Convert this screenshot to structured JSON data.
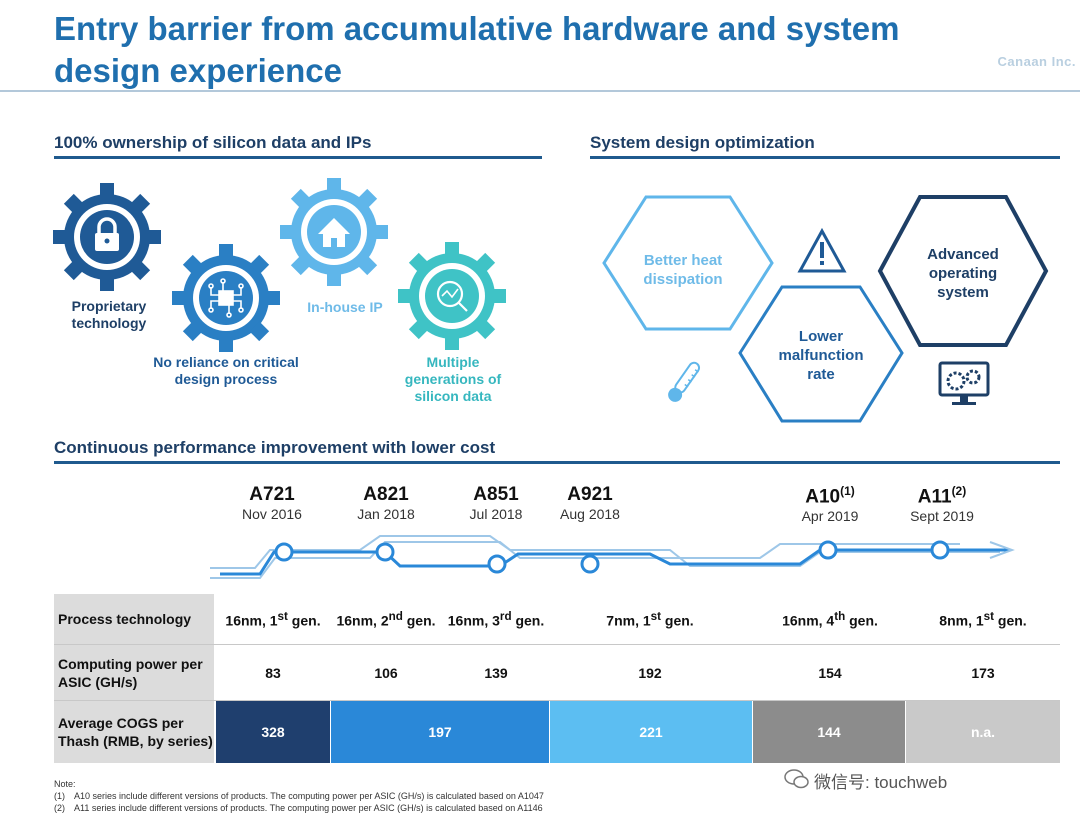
{
  "title": "Entry barrier from accumulative hardware and system design experience",
  "logo": "Canaan Inc.",
  "left_section": {
    "heading": "100% ownership of silicon data and IPs",
    "gears": [
      {
        "label": "Proprietary technology",
        "icon": "lock-icon",
        "color": "#1f5a96"
      },
      {
        "label": "No reliance on critical design process",
        "icon": "chip-icon",
        "color": "#2a7fc4"
      },
      {
        "label": "In-house IP",
        "icon": "house-icon",
        "color": "#5fb6ea"
      },
      {
        "label": "Multiple generations of silicon data",
        "icon": "magnifier-chart-icon",
        "color": "#3fc3c6"
      }
    ]
  },
  "right_section": {
    "heading": "System design optimization",
    "hexes": [
      {
        "label": "Better heat dissipation",
        "color": "#5fb6ea"
      },
      {
        "label": "Lower malfunction rate",
        "color": "#2a7fc4"
      },
      {
        "label": "Advanced operating system",
        "color": "#1e3f66"
      }
    ],
    "icons": [
      "thermometer-icon",
      "warning-icon",
      "monitor-gears-icon"
    ]
  },
  "bottom_section": {
    "heading": "Continuous performance improvement with lower cost",
    "timeline": [
      {
        "name": "A721",
        "sup": "",
        "date": "Nov 2016"
      },
      {
        "name": "A821",
        "sup": "",
        "date": "Jan 2018"
      },
      {
        "name": "A851",
        "sup": "",
        "date": "Jul 2018"
      },
      {
        "name": "A921",
        "sup": "",
        "date": "Aug 2018"
      },
      {
        "name": "A10",
        "sup": "(1)",
        "date": "Apr 2019"
      },
      {
        "name": "A11",
        "sup": "(2)",
        "date": "Sept 2019"
      }
    ],
    "table": {
      "row_labels": [
        "Process technology",
        "Computing power per ASIC (GH/s)",
        "Average COGS per Thash (RMB, by series)"
      ],
      "process": [
        {
          "main": "16nm, 1",
          "sup": "st",
          "tail": " gen."
        },
        {
          "main": "16nm, 2",
          "sup": "nd",
          "tail": " gen."
        },
        {
          "main": "16nm, 3",
          "sup": "rd",
          "tail": " gen."
        },
        {
          "main": "7nm, 1",
          "sup": "st",
          "tail": " gen."
        },
        {
          "main": "16nm, 4",
          "sup": "th",
          "tail": " gen."
        },
        {
          "main": "8nm, 1",
          "sup": "st",
          "tail": " gen."
        }
      ],
      "computing_power": [
        "83",
        "106",
        "139",
        "192",
        "154",
        "173"
      ],
      "cogs": [
        {
          "value": "328",
          "color": "#1f3f6e"
        },
        {
          "value": "197",
          "color": "#2a88d8"
        },
        {
          "value": "221",
          "color": "#5cbef2"
        },
        {
          "value": "144",
          "color": "#8c8c8c"
        },
        {
          "value": "n.a.",
          "color": "#c9c9c9"
        }
      ]
    }
  },
  "notes": {
    "heading": "Note:",
    "items": [
      {
        "num": "(1)",
        "text": "A10 series include different versions of products. The computing power per ASIC (GH/s) is calculated based on A1047"
      },
      {
        "num": "(2)",
        "text": "A11 series include different versions of products. The computing power per ASIC (GH/s) is calculated based on A1146"
      }
    ]
  },
  "watermark": "微信号: touchweb"
}
